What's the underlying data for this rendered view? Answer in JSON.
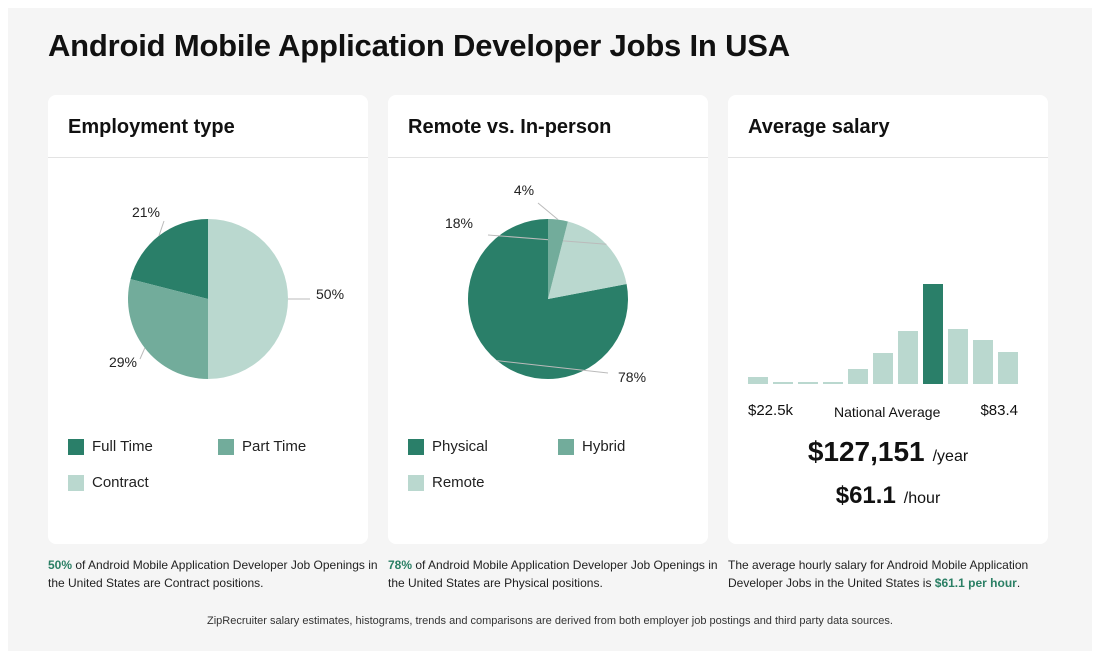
{
  "title": "Android Mobile Application Developer Jobs In USA",
  "colors": {
    "dark": "#2a7f69",
    "mid": "#72ac9b",
    "light": "#bad8cf",
    "accent": "#2a7f64"
  },
  "cards": {
    "employment": {
      "heading": "Employment type",
      "legend": [
        "Full Time",
        "Part Time",
        "Contract"
      ],
      "caption_pct": "50%",
      "caption_text": " of Android Mobile Application Developer Job Openings in the United States are Contract positions."
    },
    "remote": {
      "heading": "Remote vs. In-person",
      "legend": [
        "Physical",
        "Hybrid",
        "Remote"
      ],
      "caption_pct": "78%",
      "caption_text": " of Android Mobile Application Developer Job Openings in the United States are Physical positions."
    },
    "salary": {
      "heading": "Average salary",
      "min_label": "$22.5k",
      "mid_label": "National Average",
      "max_label": "$83.4",
      "yearly": "$127,151",
      "yearly_unit": "/year",
      "hourly": "$61.1",
      "hourly_unit": "/hour",
      "caption_text": "The average hourly salary for Android Mobile Application Developer Jobs in the United States is ",
      "caption_hl": "$61.1 per hour",
      "caption_end": "."
    }
  },
  "footer": "ZipRecruiter salary estimates, histograms, trends and comparisons are derived from both employer job postings and third party data sources.",
  "chart_data": [
    {
      "type": "pie",
      "title": "Employment type",
      "slices": [
        {
          "label": "Full Time",
          "value": 21,
          "display": "21%",
          "color": "dark"
        },
        {
          "label": "Part Time",
          "value": 29,
          "display": "29%",
          "color": "mid"
        },
        {
          "label": "Contract",
          "value": 50,
          "display": "50%",
          "color": "light"
        }
      ]
    },
    {
      "type": "pie",
      "title": "Remote vs. In-person",
      "slices": [
        {
          "label": "Physical",
          "value": 78,
          "display": "78%",
          "color": "dark"
        },
        {
          "label": "Remote",
          "value": 18,
          "display": "18%",
          "color": "light"
        },
        {
          "label": "Hybrid",
          "value": 4,
          "display": "4%",
          "color": "mid"
        }
      ]
    },
    {
      "type": "bar",
      "title": "Average salary",
      "values": [
        7,
        2,
        2,
        2,
        15,
        31,
        53,
        100,
        55,
        44,
        32
      ],
      "highlight_index": 7
    }
  ]
}
